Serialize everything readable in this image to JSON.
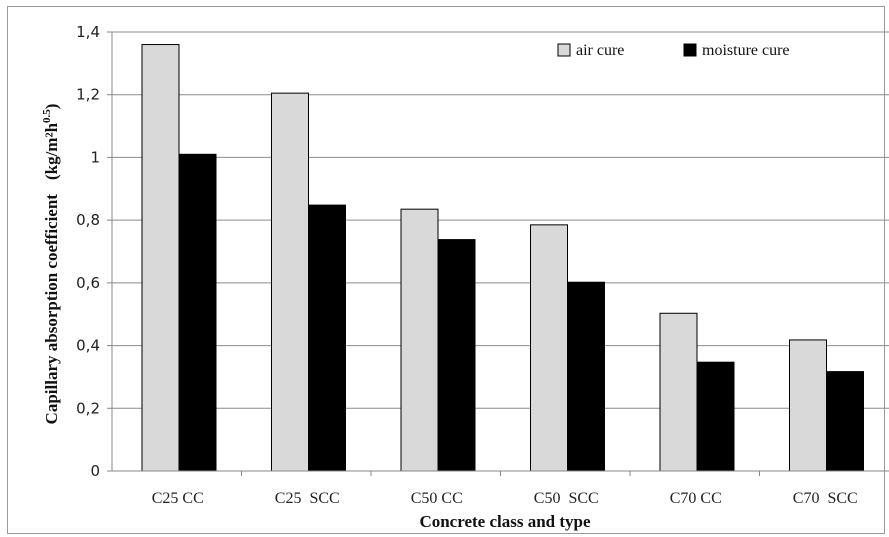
{
  "chart_data": {
    "type": "bar",
    "categories": [
      "C25 CC",
      "C25  SCC",
      "C50 CC",
      "C50  SCC",
      "C70 CC",
      "C70  SCC"
    ],
    "series": [
      {
        "name": "air cure",
        "values": [
          1.36,
          1.205,
          0.835,
          0.785,
          0.503,
          0.418
        ],
        "color": "#d9d9d9"
      },
      {
        "name": "moisture cure",
        "values": [
          1.01,
          0.848,
          0.738,
          0.602,
          0.347,
          0.317
        ],
        "color": "#000000"
      }
    ],
    "title": "",
    "xlabel": "Concrete class and type",
    "ylabel_main": "Capillary absorption coefficient",
    "ylabel_unit": "(kg/m²h",
    "ylabel_exp": "0.5",
    "ylabel_close": ")",
    "ylim": [
      0,
      1.4
    ],
    "yticks": [
      "0",
      "0,2",
      "0,4",
      "0,6",
      "0,8",
      "1",
      "1,2",
      "1,4"
    ],
    "grid": true,
    "legend_position": "top-right"
  }
}
